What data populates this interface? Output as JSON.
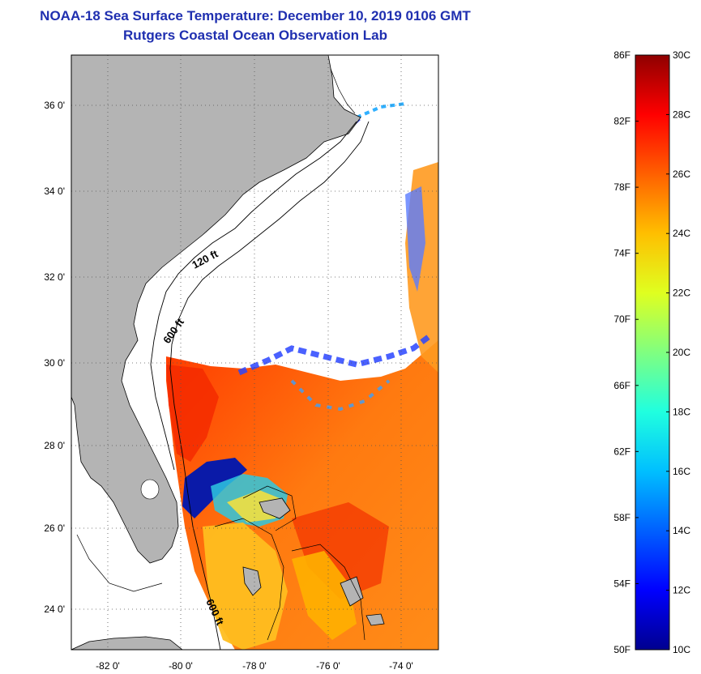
{
  "header": {
    "title": "NOAA-18 Sea Surface Temperature:  December 10, 2019 0106 GMT",
    "subtitle": "Rutgers Coastal Ocean Observation Lab"
  },
  "map": {
    "lat_labels": [
      "36 0'",
      "34 0'",
      "32 0'",
      "30 0'",
      "28 0'",
      "26 0'",
      "24 0'"
    ],
    "lon_labels": [
      "-82 0'",
      "-80 0'",
      "-78 0'",
      "-76 0'",
      "-74 0'"
    ],
    "contour_labels": [
      "120 ft",
      "600 ft",
      "600 ft"
    ]
  },
  "colorbar": {
    "fahrenheit": [
      "86F",
      "82F",
      "78F",
      "74F",
      "70F",
      "66F",
      "62F",
      "58F",
      "54F",
      "50F"
    ],
    "celsius": [
      "30C",
      "28C",
      "26C",
      "24C",
      "22C",
      "20C",
      "18C",
      "16C",
      "14C",
      "12C",
      "10C"
    ],
    "colors": [
      "#00008f",
      "#0000ff",
      "#0060ff",
      "#00bfff",
      "#20ffdf",
      "#80ff80",
      "#dfff20",
      "#ffbf00",
      "#ff6000",
      "#ff0000",
      "#8f0000"
    ]
  }
}
